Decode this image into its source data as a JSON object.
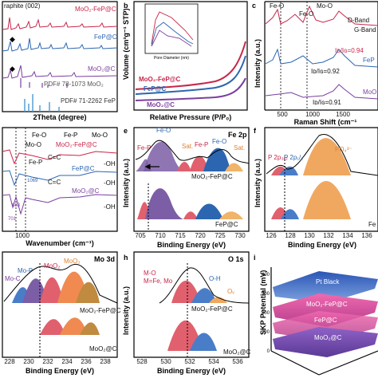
{
  "panels": {
    "a": {
      "letter": "",
      "top_label": "raphite (002)",
      "series": [
        "MoO₂-FeP@C",
        "FeP@C",
        "MoO₂@C",
        "PDF# 78-1073 MoO₂",
        "PDF# 71-2262 FeP"
      ],
      "xlabel": "2Theta (degree)",
      "colors": {
        "moofep": "#c8264a",
        "fep": "#2c66b0",
        "moo": "#7a3f9e",
        "pdf": "#4a9ad1"
      }
    },
    "b": {
      "letter": "b",
      "ylabel": "Volume (cm³g⁻¹ STP)",
      "xlabel": "Relative Pressure (P/P₀)",
      "inset_xlabel": "Pore Diameter (nm)",
      "inset_ylabel": "dV/dD (cm³g⁻¹)",
      "series": [
        "MoO₂-FeP@C",
        "FeP@C",
        "MoO₂@C"
      ]
    },
    "c": {
      "letter": "c",
      "annotations": [
        "Fe-O",
        "Mo-O",
        "D-Band",
        "G-Band"
      ],
      "ratios": [
        "Iᴅ/Iɢ=0.94",
        "Iᴅ/Iɢ=0.92",
        "Iᴅ/Iɢ=0.91"
      ],
      "series": [
        "FeP",
        "MoO"
      ],
      "ylabel": "Intensity (a.u.)",
      "xlabel": "Raman Shift (cm⁻¹",
      "ticks": [
        "500",
        "1000",
        "1500"
      ]
    },
    "d": {
      "legend": [
        "Fe-O",
        "Fe-P",
        "Mo-O"
      ],
      "labels": [
        "Mo-O",
        "Fe-P",
        "C=C",
        "C=C",
        "-OH",
        "-OH",
        "-OH"
      ],
      "series": [
        "MoO₂-FeP@C",
        "FeP@C",
        "MoO₂@C"
      ],
      "peaks": [
        "1069",
        "883",
        "701"
      ],
      "xlabel": "Wavenumber (cm⁻¹)",
      "ticks": [
        "1000"
      ]
    },
    "e": {
      "letter": "e",
      "title": "Fe 2p",
      "labels": [
        "Fe-P",
        "Fe-O",
        "Sat.",
        "Fe-P",
        "Fe-O",
        "Sat."
      ],
      "series": [
        "MoO₂-FeP@C",
        "FeP@C"
      ],
      "ylabel": "Intensity (a.u.)",
      "xlabel": "Binding Energy (eV)",
      "ticks": [
        "705",
        "710",
        "715",
        "720",
        "725",
        "730"
      ]
    },
    "f": {
      "letter": "f",
      "labels": [
        "P 2p₃/₂",
        "P 2p₁/₂",
        "PO₄³⁻"
      ],
      "series": [
        "Fe"
      ],
      "ylabel": "Intensity (a.u.)",
      "xlabel": "Binding Energy (eV)",
      "ticks": [
        "126",
        "128",
        "130",
        "132",
        "134",
        "136"
      ]
    },
    "g": {
      "title": "Mo 3d",
      "labels": [
        "Mo-P",
        "Mo-C",
        "MoO₂",
        "MoO₃"
      ],
      "series": [
        "MoO₂-FeP@C",
        "MoO₂@C"
      ],
      "xlabel": "Binding Energy (eV)",
      "ticks": [
        "228",
        "230",
        "232",
        "234",
        "236",
        "238"
      ]
    },
    "h": {
      "letter": "h",
      "title": "O 1s",
      "labels": [
        "M-O",
        "M=Fe, Mo",
        "O-H",
        "Oᵥ"
      ],
      "series": [
        "MoO₂-FeP@C",
        "MoO₂@C"
      ],
      "ylabel": "Intensity (a.u.)",
      "xlabel": "Binding Energy (eV)",
      "ticks": [
        "528",
        "530",
        "532",
        "534",
        "536"
      ]
    },
    "i": {
      "letter": "i",
      "ylabel": "SKP Potential (mV)",
      "layers": [
        "Pt Black",
        "MoO₂-FeP@C",
        "FeP@C",
        "MoO₂@C"
      ],
      "zticks": [
        "0",
        "100",
        "200",
        "300",
        "400"
      ]
    }
  }
}
